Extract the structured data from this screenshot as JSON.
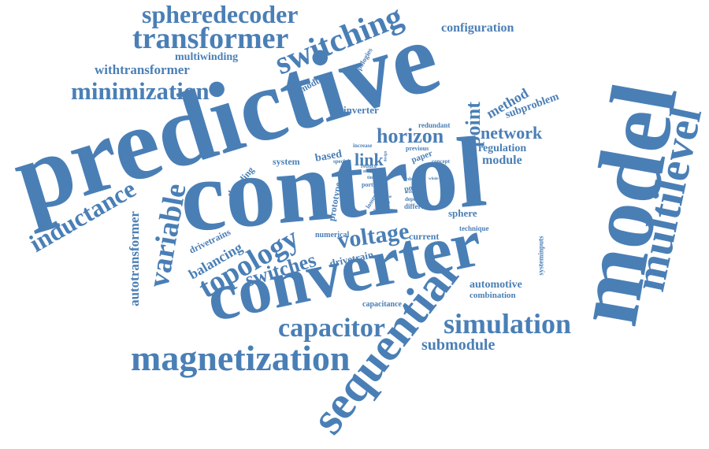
{
  "color": "#4a7fb6",
  "words": {
    "predictive": "predictive",
    "control": "control",
    "model": "model",
    "converter": "converter",
    "multilevel": "multilevel",
    "sequential": "sequential",
    "magnetization": "magnetization",
    "simulation": "simulation",
    "transformer": "transformer",
    "spheredecoder": "spheredecoder",
    "switching": "switching",
    "minimization": "minimization",
    "variable": "variable",
    "inductance": "inductance",
    "topology": "topology",
    "capacitor": "capacitor",
    "voltage": "voltage",
    "switches": "switches",
    "horizon": "horizon",
    "network": "network",
    "point": "point",
    "submodule": "submodule",
    "configuration": "configuration",
    "withtransformer": "withtransformer",
    "multiwinding": "multiwinding",
    "balancing": "balancing",
    "autotransformer": "autotransformer",
    "link": "link",
    "method": "method",
    "subproblem": "subproblem",
    "module": "module",
    "regulation": "regulation",
    "automotive": "automotive",
    "combination": "combination",
    "sphere": "sphere",
    "current": "current",
    "inverter": "inverter",
    "modular": "modular",
    "topologies": "topologies",
    "drivetrains": "drivetrains",
    "drivetrain": "drivetrain",
    "prototype": "prototype",
    "decoding": "decoding",
    "system": "system",
    "based": "based",
    "paper": "paper",
    "numerical": "numerical",
    "capacitance": "capacitance",
    "systeminputs": "systeminputs",
    "technique": "technique",
    "redundant": "redundant",
    "increase": "increase",
    "previous": "previous",
    "concept": "concept",
    "special": "special",
    "reduce": "reduce",
    "novel": "novel",
    "port": "port",
    "goal": "goal",
    "losses": "losses",
    "phase": "phase",
    "power": "power",
    "depend": "depend",
    "different": "different",
    "order": "order",
    "time": "time",
    "mea": "mea",
    "issue": "issue",
    "design": "design",
    "active": "active",
    "due": "due",
    "whole": "whole"
  }
}
